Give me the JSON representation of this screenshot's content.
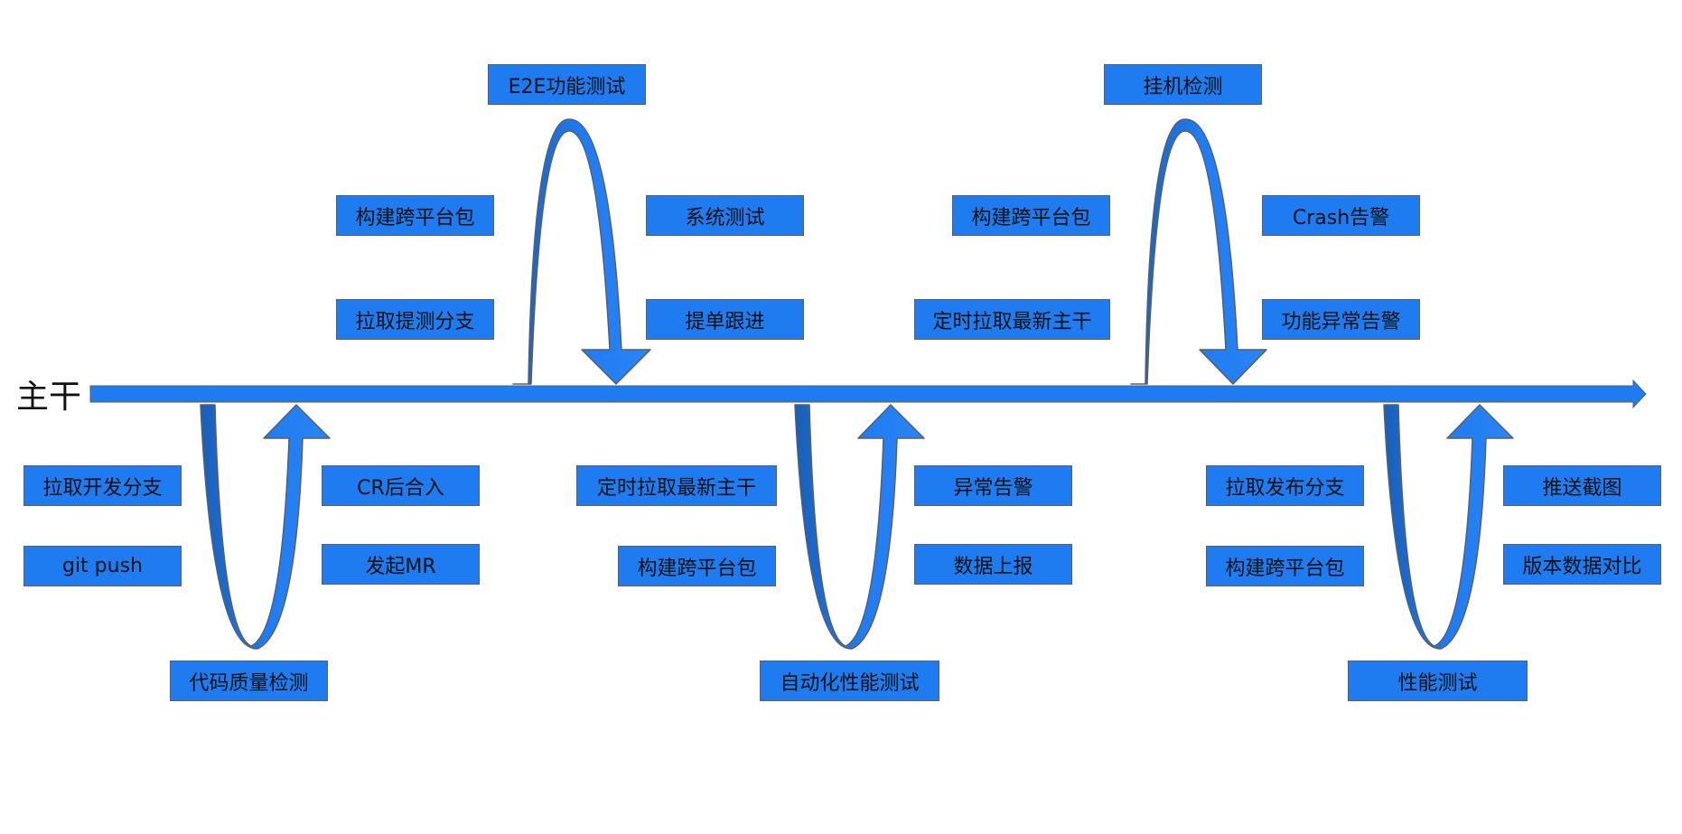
{
  "colors": {
    "fill": "#1f7bf0",
    "dark": "#1a62bf",
    "stroke": "#5a5f66",
    "text": "#111111"
  },
  "trunk": {
    "label": "主干"
  },
  "top_loops": [
    {
      "title": "E2E功能测试",
      "left_steps": [
        "构建跨平台包",
        "拉取提测分支"
      ],
      "right_steps": [
        "系统测试",
        "提单跟进"
      ]
    },
    {
      "title": "挂机检测",
      "left_steps": [
        "构建跨平台包",
        "定时拉取最新主干"
      ],
      "right_steps": [
        "Crash告警",
        "功能异常告警"
      ]
    }
  ],
  "bottom_loops": [
    {
      "title": "代码质量检测",
      "left_steps": [
        "拉取开发分支",
        "git push"
      ],
      "right_steps": [
        "CR后合入",
        "发起MR"
      ]
    },
    {
      "title": "自动化性能测试",
      "left_steps": [
        "定时拉取最新主干",
        "构建跨平台包"
      ],
      "right_steps": [
        "异常告警",
        "数据上报"
      ]
    },
    {
      "title": "性能测试",
      "left_steps": [
        "拉取发布分支",
        "构建跨平台包"
      ],
      "right_steps": [
        "推送截图",
        "版本数据对比"
      ]
    }
  ]
}
